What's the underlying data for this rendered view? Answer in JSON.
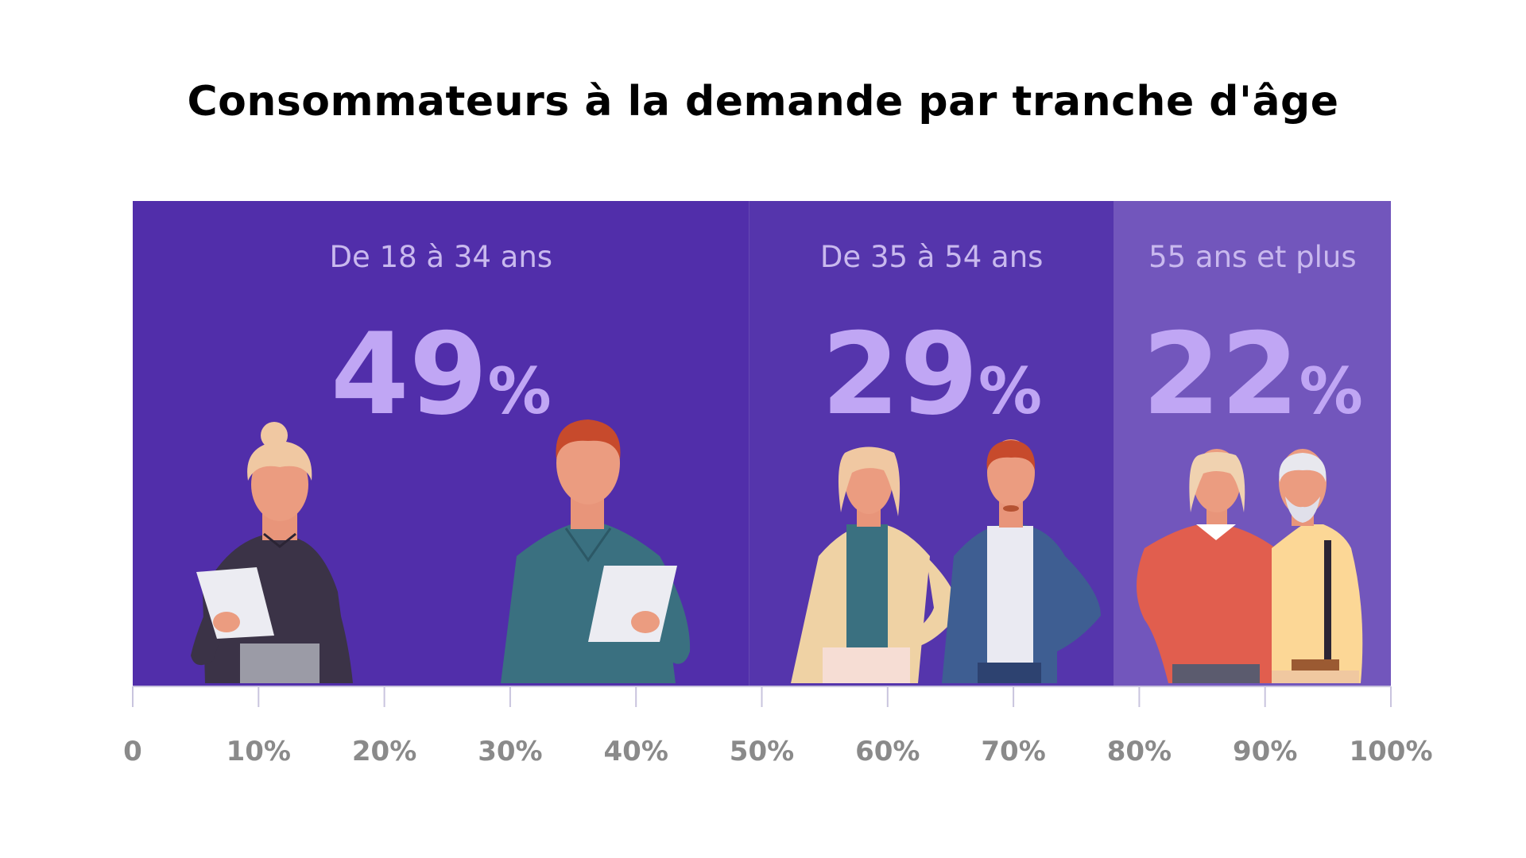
{
  "colors": {
    "segment_1": "#512eaa",
    "segment_2": "#5535ac",
    "segment_3": "#7256bc",
    "percent_text": "#c0a6f4",
    "label_text": "#c9b9ee",
    "axis": "#c9c4de",
    "tick_text": "#8a8a8a"
  },
  "chart_data": {
    "type": "bar",
    "orientation": "horizontal",
    "stacked": true,
    "title": "Consommateurs à la demande par tranche d'âge",
    "xlim": [
      0,
      100
    ],
    "x_ticks": [
      "0",
      "10%",
      "20%",
      "30%",
      "40%",
      "50%",
      "60%",
      "70%",
      "80%",
      "90%",
      "100%"
    ],
    "categories": [
      "De 18 à 34 ans",
      "De 35 à 54 ans",
      "55 ans et plus"
    ],
    "values": [
      49,
      29,
      22
    ],
    "value_labels": [
      "49",
      "29",
      "22"
    ],
    "value_suffix": "%",
    "grid": false,
    "legend": "none"
  },
  "illustrations": [
    "woman-with-tablet",
    "man-with-tablet",
    "woman-in-blazer",
    "man-in-suit",
    "older-woman-in-sweater",
    "older-man-with-beard"
  ]
}
